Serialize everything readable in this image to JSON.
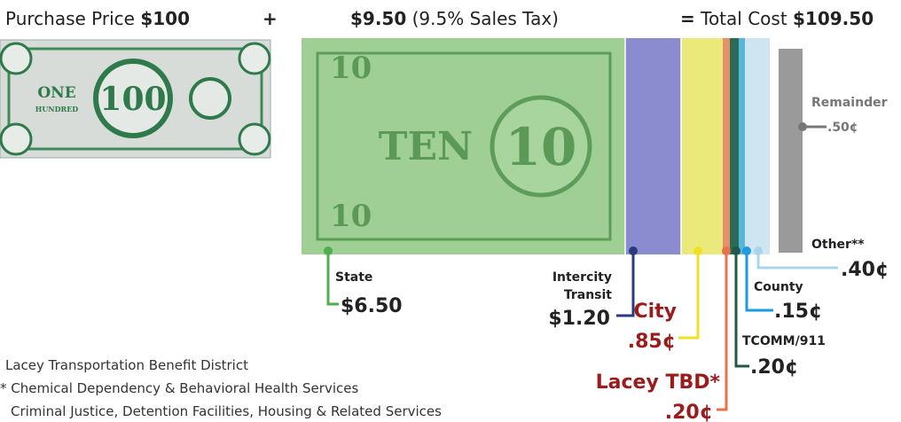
{
  "header": {
    "purchase_label": "Purchase Price",
    "purchase_amount": "$100",
    "plus": "+",
    "tax_amount": "$9.50",
    "tax_note": "(9.5% Sales Tax)",
    "equals": "=",
    "total_label": "Total Cost",
    "total_amount": "$109.50"
  },
  "bills": {
    "hundred_word": "ONE",
    "hundred_sub": "HUNDRED",
    "hundred_num": "100",
    "ten_word": "TEN",
    "ten_num": "10"
  },
  "shares": [
    {
      "name": "State",
      "amount": "$6.50"
    },
    {
      "name": "Intercity Transit",
      "amount": "$1.20"
    },
    {
      "name": "City",
      "amount": ".85¢"
    },
    {
      "name": "Lacey TBD*",
      "amount": ".20¢"
    },
    {
      "name": "TCOMM/911",
      "amount": ".20¢"
    },
    {
      "name": "County",
      "amount": ".15¢"
    },
    {
      "name": "Other**",
      "amount": ".40¢"
    },
    {
      "name": "Remainder",
      "amount": ".50¢"
    }
  ],
  "footnotes": [
    "Lacey Transportation Benefit District",
    "* Chemical Dependency & Behavioral Health Services",
    "Criminal Justice, Detention Facilities, Housing & Related Services"
  ]
}
